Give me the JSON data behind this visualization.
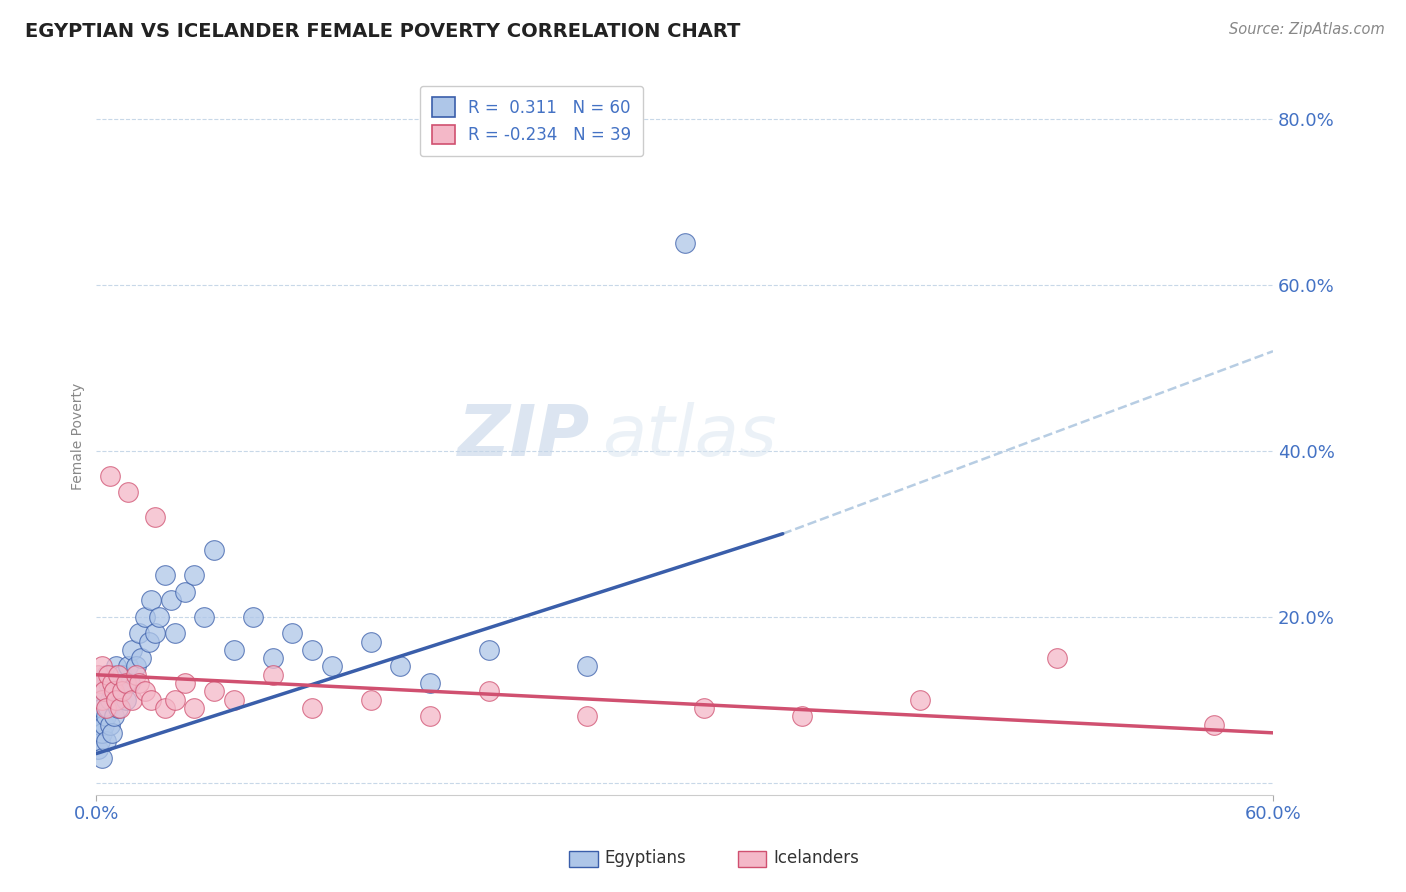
{
  "title": "EGYPTIAN VS ICELANDER FEMALE POVERTY CORRELATION CHART",
  "source": "Source: ZipAtlas.com",
  "xmin": 0.0,
  "xmax": 0.6,
  "ymin": -0.015,
  "ymax": 0.85,
  "watermark_zip": "ZIP",
  "watermark_atlas": "atlas",
  "legend_r1": "R =  0.311",
  "legend_n1": "N = 60",
  "legend_r2": "R = -0.234",
  "legend_n2": "N = 39",
  "color_egyptian": "#aec6e8",
  "color_icelander": "#f4b8c8",
  "color_trend_egyptian": "#3a5eaa",
  "color_trend_icelander": "#d05070",
  "color_trend_dashed": "#b0c8e0",
  "color_axis_text": "#4472c4",
  "color_grid": "#c8d8e8",
  "egyptians_x": [
    0.001,
    0.001,
    0.001,
    0.002,
    0.002,
    0.002,
    0.002,
    0.003,
    0.003,
    0.003,
    0.004,
    0.004,
    0.005,
    0.005,
    0.005,
    0.006,
    0.006,
    0.007,
    0.007,
    0.008,
    0.008,
    0.009,
    0.009,
    0.01,
    0.01,
    0.011,
    0.012,
    0.013,
    0.014,
    0.015,
    0.016,
    0.017,
    0.018,
    0.02,
    0.022,
    0.023,
    0.025,
    0.027,
    0.028,
    0.03,
    0.032,
    0.035,
    0.038,
    0.04,
    0.045,
    0.05,
    0.055,
    0.06,
    0.07,
    0.08,
    0.09,
    0.1,
    0.11,
    0.12,
    0.14,
    0.155,
    0.17,
    0.2,
    0.25,
    0.3
  ],
  "egyptians_y": [
    0.04,
    0.06,
    0.08,
    0.05,
    0.07,
    0.1,
    0.12,
    0.03,
    0.06,
    0.09,
    0.07,
    0.11,
    0.05,
    0.08,
    0.13,
    0.09,
    0.12,
    0.07,
    0.1,
    0.06,
    0.11,
    0.08,
    0.13,
    0.1,
    0.14,
    0.09,
    0.11,
    0.13,
    0.12,
    0.1,
    0.14,
    0.12,
    0.16,
    0.14,
    0.18,
    0.15,
    0.2,
    0.17,
    0.22,
    0.18,
    0.2,
    0.25,
    0.22,
    0.18,
    0.23,
    0.25,
    0.2,
    0.28,
    0.16,
    0.2,
    0.15,
    0.18,
    0.16,
    0.14,
    0.17,
    0.14,
    0.12,
    0.16,
    0.14,
    0.65
  ],
  "icelanders_x": [
    0.001,
    0.002,
    0.003,
    0.003,
    0.004,
    0.005,
    0.006,
    0.007,
    0.008,
    0.009,
    0.01,
    0.011,
    0.012,
    0.013,
    0.015,
    0.016,
    0.018,
    0.02,
    0.022,
    0.025,
    0.028,
    0.03,
    0.035,
    0.04,
    0.045,
    0.05,
    0.06,
    0.07,
    0.09,
    0.11,
    0.14,
    0.17,
    0.2,
    0.25,
    0.31,
    0.36,
    0.42,
    0.49,
    0.57
  ],
  "icelanders_y": [
    0.13,
    0.12,
    0.1,
    0.14,
    0.11,
    0.09,
    0.13,
    0.37,
    0.12,
    0.11,
    0.1,
    0.13,
    0.09,
    0.11,
    0.12,
    0.35,
    0.1,
    0.13,
    0.12,
    0.11,
    0.1,
    0.32,
    0.09,
    0.1,
    0.12,
    0.09,
    0.11,
    0.1,
    0.13,
    0.09,
    0.1,
    0.08,
    0.11,
    0.08,
    0.09,
    0.08,
    0.1,
    0.15,
    0.07
  ],
  "blue_trendline": [
    [
      0.0,
      0.035
    ],
    [
      0.35,
      0.3
    ]
  ],
  "dashed_line": [
    [
      0.35,
      0.3
    ],
    [
      0.6,
      0.52
    ]
  ],
  "pink_trendline": [
    [
      0.0,
      0.13
    ],
    [
      0.6,
      0.06
    ]
  ]
}
